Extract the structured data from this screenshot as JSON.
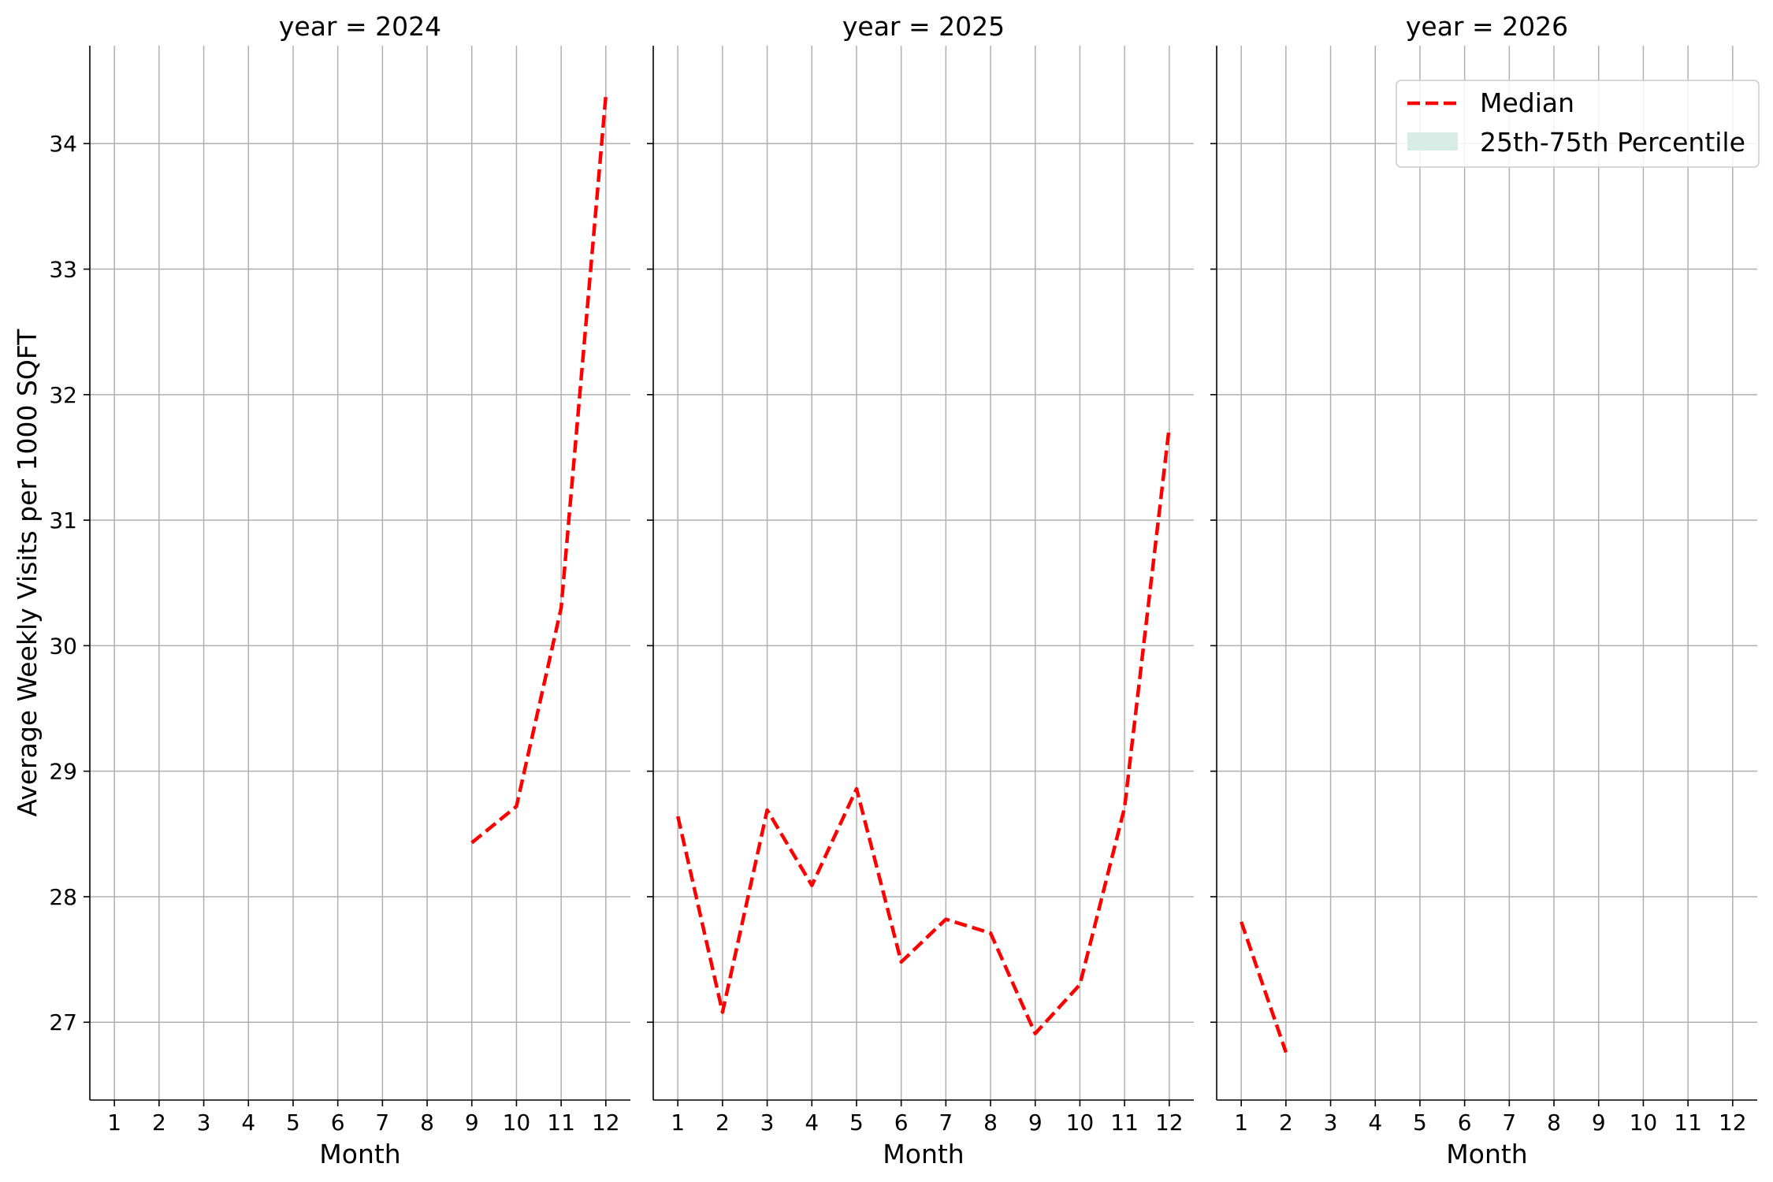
{
  "chart_data": {
    "type": "line",
    "ylabel": "Average Weekly Visits per 1000 SQFT",
    "xlabel": "Month",
    "x_ticks": [
      "1",
      "2",
      "3",
      "4",
      "5",
      "6",
      "7",
      "8",
      "9",
      "10",
      "11",
      "12"
    ],
    "y_ticks": [
      27,
      28,
      29,
      30,
      31,
      32,
      33,
      34
    ],
    "xlim": [
      0.45,
      12.55
    ],
    "ylim": [
      26.38,
      34.78
    ],
    "grid": true,
    "legend": {
      "placement": "top-right",
      "entries": [
        {
          "label": "Median",
          "style": "dashed-line",
          "color": "#ff0000"
        },
        {
          "label": "25th-75th Percentile",
          "style": "fill",
          "color": "#d6ece5"
        }
      ]
    },
    "colors": {
      "median": "#ff0000",
      "band": "#d6ece5",
      "grid": "#b0b0b0"
    },
    "panels": [
      {
        "title": "year = 2024",
        "series": [
          {
            "name": "Median",
            "x": [
              9,
              10,
              11,
              12
            ],
            "y": [
              28.43,
              28.72,
              30.3,
              34.38
            ]
          }
        ]
      },
      {
        "title": "year = 2025",
        "series": [
          {
            "name": "Median",
            "x": [
              1,
              2,
              3,
              4,
              5,
              6,
              7,
              8,
              9,
              10,
              11,
              12
            ],
            "y": [
              28.64,
              27.08,
              28.69,
              28.09,
              28.86,
              27.48,
              27.82,
              27.71,
              26.91,
              27.3,
              28.71,
              31.74
            ]
          }
        ]
      },
      {
        "title": "year = 2026",
        "series": [
          {
            "name": "Median",
            "x": [
              1,
              2
            ],
            "y": [
              27.8,
              26.76
            ]
          }
        ]
      }
    ]
  }
}
